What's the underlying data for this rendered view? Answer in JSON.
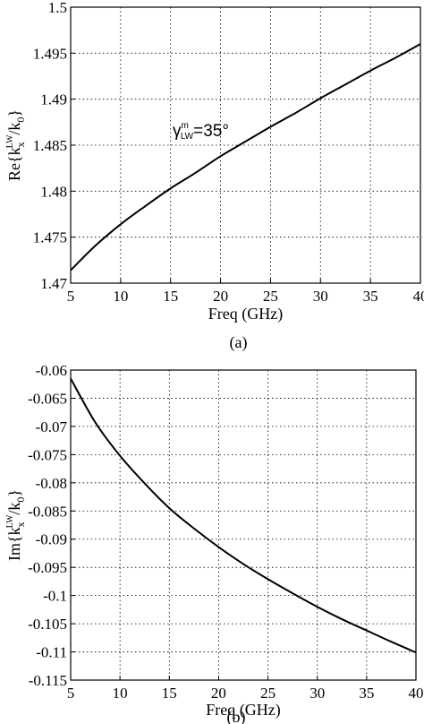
{
  "chart_data": [
    {
      "type": "line",
      "panel_label": "(a)",
      "xlabel": "Freq (GHz)",
      "ylabel": "Re{k_x^LW/k_0}",
      "xlim": [
        5,
        40
      ],
      "ylim": [
        1.47,
        1.5
      ],
      "x_ticks": [
        5,
        10,
        15,
        20,
        25,
        30,
        35,
        40
      ],
      "y_ticks": [
        1.47,
        1.475,
        1.48,
        1.485,
        1.49,
        1.495,
        1.5
      ],
      "grid": true,
      "annotation": {
        "text": "γ",
        "sup": "m",
        "sub": "LW",
        "value": "=35°"
      },
      "series": [
        {
          "x": [
            5,
            7.5,
            10,
            12.5,
            15,
            17.5,
            20,
            22.5,
            25,
            27.5,
            30,
            32.5,
            35,
            37.5,
            40
          ],
          "y": [
            1.4714,
            1.4741,
            1.4764,
            1.4784,
            1.4803,
            1.482,
            1.4838,
            1.4854,
            1.487,
            1.4885,
            1.4901,
            1.4916,
            1.4931,
            1.4945,
            1.496
          ]
        }
      ]
    },
    {
      "type": "line",
      "panel_label": "(b)",
      "xlabel": "Freq (GHz)",
      "ylabel": "Im{k_x^LW/k_0}",
      "xlim": [
        5,
        40
      ],
      "ylim": [
        -0.115,
        -0.06
      ],
      "x_ticks": [
        5,
        10,
        15,
        20,
        25,
        30,
        35,
        40
      ],
      "y_ticks": [
        -0.06,
        -0.065,
        -0.07,
        -0.075,
        -0.08,
        -0.085,
        -0.09,
        -0.095,
        -0.1,
        -0.105,
        -0.11,
        -0.115
      ],
      "grid": true,
      "series": [
        {
          "x": [
            5,
            7.5,
            10,
            12.5,
            15,
            17.5,
            20,
            22.5,
            25,
            27.5,
            30,
            32.5,
            35,
            37.5,
            40
          ],
          "y": [
            -0.0615,
            -0.0693,
            -0.0752,
            -0.0801,
            -0.0845,
            -0.0881,
            -0.0914,
            -0.0944,
            -0.0971,
            -0.0996,
            -0.102,
            -0.1042,
            -0.1062,
            -0.1082,
            -0.1101
          ]
        }
      ]
    }
  ]
}
